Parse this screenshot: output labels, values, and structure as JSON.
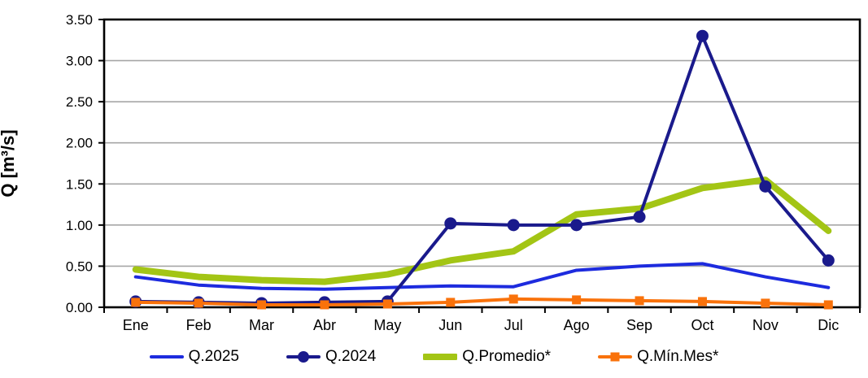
{
  "chart_data": {
    "type": "line",
    "title": "",
    "xlabel": "",
    "ylabel": "Q [m³/s]",
    "ylim": [
      0,
      3.5
    ],
    "y_tick_step": 0.5,
    "y_tick_labels": [
      "0.00",
      "0.50",
      "1.00",
      "1.50",
      "2.00",
      "2.50",
      "3.00",
      "3.50"
    ],
    "grid": "horizontal",
    "legend_position": "bottom",
    "categories": [
      "Ene",
      "Feb",
      "Mar",
      "Abr",
      "May",
      "Jun",
      "Jul",
      "Ago",
      "Sep",
      "Oct",
      "Nov",
      "Dic"
    ],
    "series": [
      {
        "name": "Q.2025",
        "color": "#1D2BDE",
        "marker": "none",
        "line_width": 4,
        "values": [
          0.37,
          0.27,
          0.23,
          0.22,
          0.24,
          0.26,
          0.25,
          0.45,
          0.5,
          0.53,
          0.37,
          0.24
        ]
      },
      {
        "name": "Q.2024",
        "color": "#1A1A8C",
        "marker": "circle",
        "line_width": 4,
        "values": [
          0.07,
          0.06,
          0.05,
          0.06,
          0.07,
          1.02,
          1.0,
          1.0,
          1.1,
          3.3,
          1.47,
          0.57
        ]
      },
      {
        "name": "Q.Promedio*",
        "color": "#A3C515",
        "marker": "none",
        "line_width": 8,
        "values": [
          0.46,
          0.37,
          0.33,
          0.31,
          0.4,
          0.57,
          0.68,
          1.13,
          1.2,
          1.45,
          1.55,
          0.93
        ]
      },
      {
        "name": "Q.Mín.Mes*",
        "color": "#F9720B",
        "marker": "square",
        "line_width": 4,
        "values": [
          0.06,
          0.05,
          0.03,
          0.03,
          0.04,
          0.06,
          0.1,
          0.09,
          0.08,
          0.07,
          0.05,
          0.03
        ]
      }
    ],
    "draw_order": [
      0,
      2,
      1,
      3
    ],
    "colors": {
      "grid": "#A6A6A6",
      "axis": "#000000",
      "background": "#FFFFFF"
    }
  }
}
